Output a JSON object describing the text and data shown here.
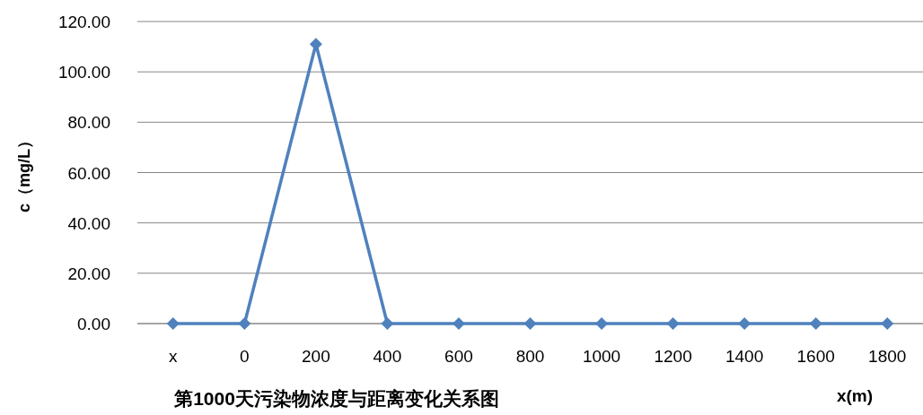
{
  "chart_data": {
    "type": "line",
    "title": "第1000天污染物浓度与距离变化关系图",
    "xlabel": "x(m)",
    "ylabel": "c（mg/L）",
    "categories": [
      "x",
      "0",
      "200",
      "400",
      "600",
      "800",
      "1000",
      "1200",
      "1400",
      "1600",
      "1800"
    ],
    "series": [
      {
        "color": "#4f81bd",
        "values": [
          0,
          0,
          111,
          0,
          0,
          0,
          0,
          0,
          0,
          0,
          0
        ]
      }
    ],
    "ylim": [
      0,
      120
    ],
    "yticks": [
      {
        "value": 0,
        "label": "0.00"
      },
      {
        "value": 20,
        "label": "20.00"
      },
      {
        "value": 40,
        "label": "40.00"
      },
      {
        "value": 60,
        "label": "60.00"
      },
      {
        "value": 80,
        "label": "80.00"
      },
      {
        "value": 100,
        "label": "100.00"
      },
      {
        "value": 120,
        "label": "120.00"
      }
    ],
    "grid": "y",
    "marker": "diamond",
    "line_style": "solid"
  }
}
